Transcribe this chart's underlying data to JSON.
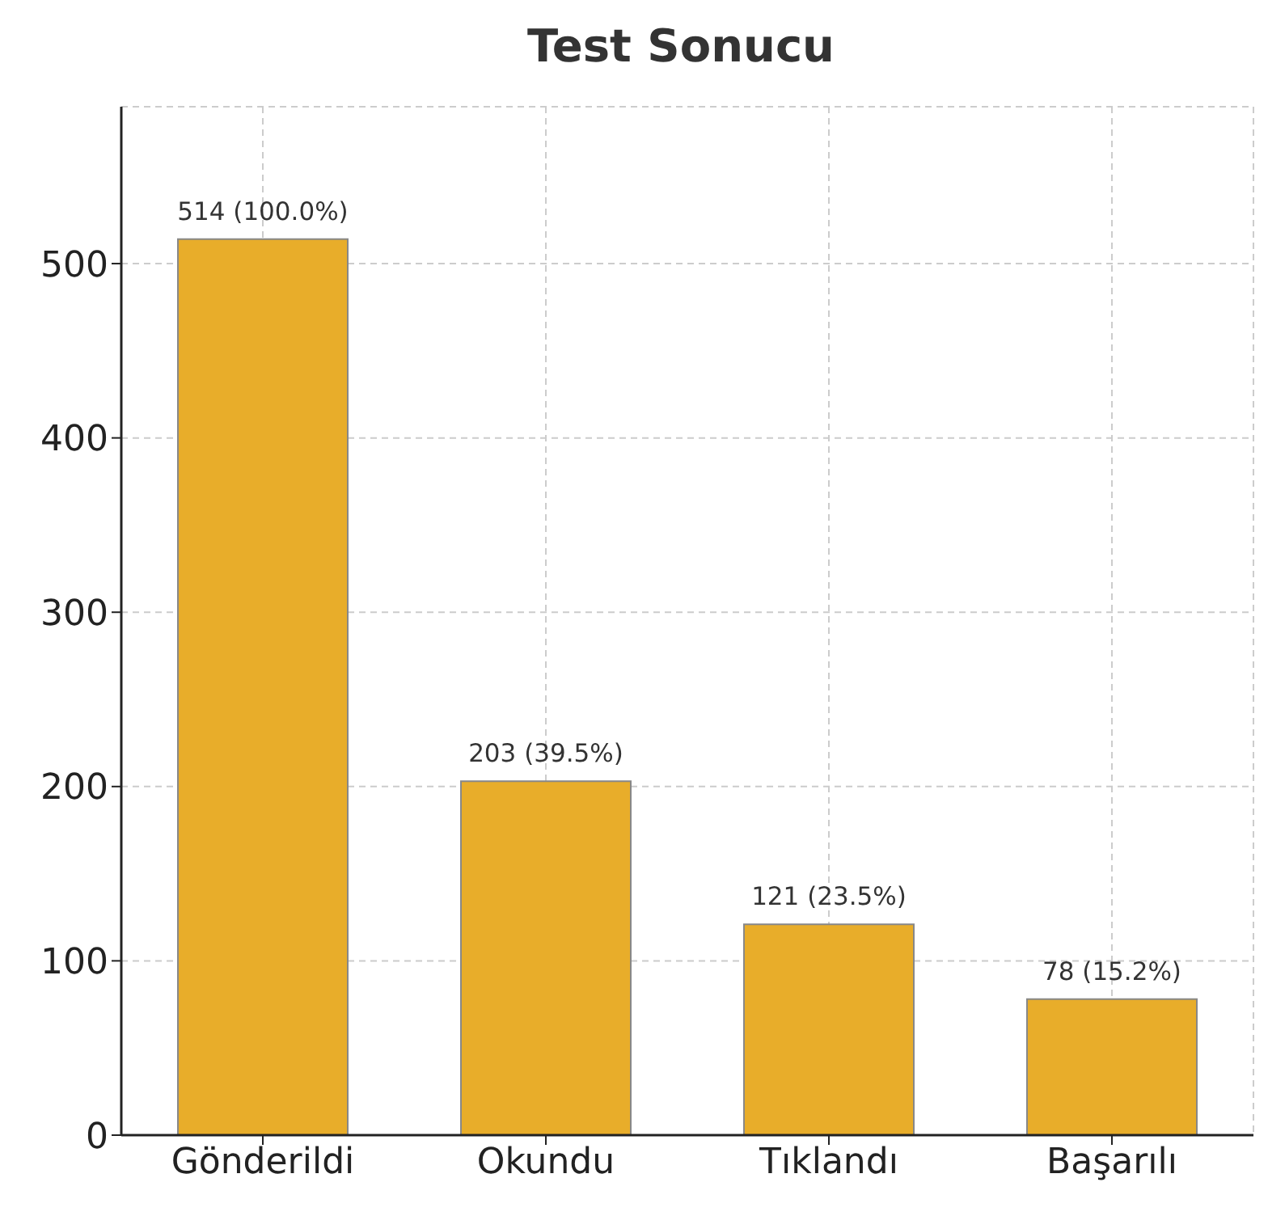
{
  "chart_data": {
    "type": "bar",
    "title": "Test Sonucu",
    "categories": [
      "Gönderildi",
      "Okundu",
      "Tıklandı",
      "Başarılı"
    ],
    "values": [
      514,
      203,
      121,
      78
    ],
    "value_labels": [
      "514 (100.0%)",
      "203 (39.5%)",
      "121 (23.5%)",
      "78 (15.2%)"
    ],
    "color": "#e8ad2a",
    "ylim": [
      0,
      590
    ],
    "yticks": [
      0,
      100,
      200,
      300,
      400,
      500
    ],
    "grid": true
  }
}
